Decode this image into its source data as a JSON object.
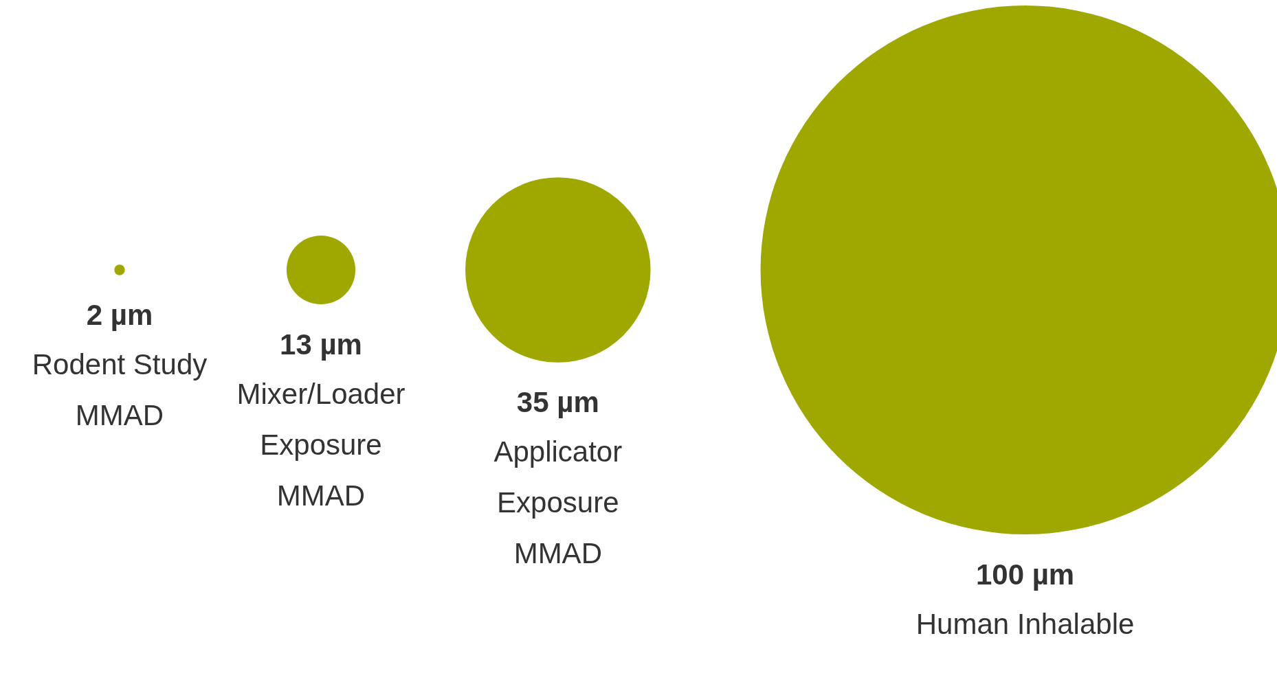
{
  "chart_data": {
    "type": "other",
    "categories": [
      "Rodent Study MMAD",
      "Mixer/Loader Exposure MMAD",
      "Applicator Exposure MMAD",
      "Human Inhalable"
    ],
    "values": [
      2,
      13,
      35,
      100
    ],
    "value_labels": [
      "2 µm",
      "13 µm",
      "35 µm",
      "100 µm"
    ],
    "color": "#9ea800"
  }
}
